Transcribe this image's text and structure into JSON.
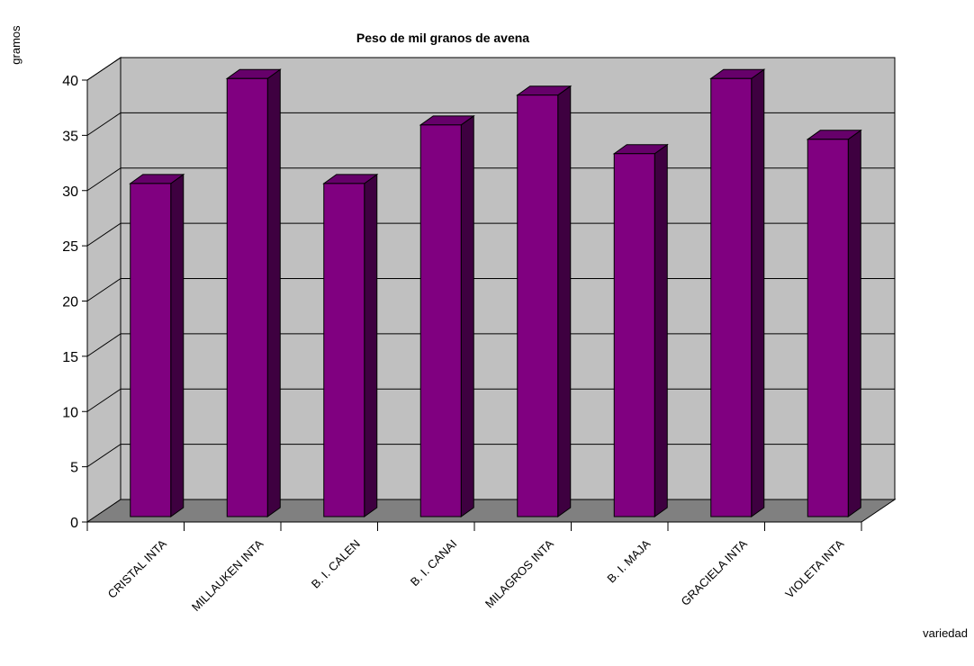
{
  "chart_data": {
    "type": "bar",
    "title": "Peso de mil granos de avena",
    "ylabel": "gramos",
    "xlabel": "variedad",
    "categories": [
      "CRISTAL INTA",
      "MILLAUKEN INTA",
      "B. I. CALEN",
      "B. I. CANAI",
      "MILAGROS INTA",
      "B. I. MAJA",
      "GRACIELA INTA",
      "VIOLETA INTA"
    ],
    "values": [
      29.5,
      39.0,
      29.5,
      34.8,
      37.5,
      32.2,
      39.0,
      33.5
    ],
    "ylim": [
      0,
      40
    ],
    "yticks": [
      "0",
      "5",
      "10",
      "15",
      "20",
      "25",
      "30",
      "35",
      "40"
    ],
    "grid": true,
    "legend": "none",
    "style": "3d",
    "colors": {
      "bar_front": "#800080",
      "bar_side": "#3e0040",
      "bar_top": "#66006a",
      "wall": "#c0c0c0",
      "floor": "#808080",
      "gridline": "#000000"
    }
  }
}
